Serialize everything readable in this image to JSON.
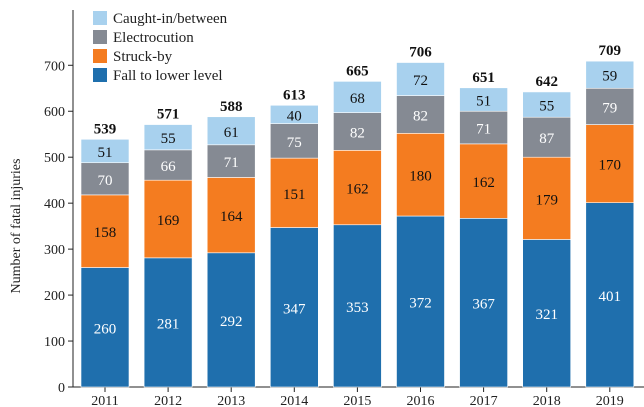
{
  "chart_data": {
    "type": "bar",
    "stacked": true,
    "title": "",
    "xlabel": "",
    "ylabel": "Number of fatal injuries",
    "ylim": [
      0,
      750
    ],
    "yticks": [
      0,
      100,
      200,
      300,
      400,
      500,
      600,
      700
    ],
    "grid": false,
    "legend_position": "top-left",
    "categories": [
      "2011",
      "2012",
      "2013",
      "2014",
      "2015",
      "2016",
      "2017",
      "2018",
      "2019"
    ],
    "series": [
      {
        "name": "Fall to lower level",
        "color": "#1f6fad",
        "values": [
          260,
          281,
          292,
          347,
          353,
          372,
          367,
          321,
          401
        ]
      },
      {
        "name": "Struck-by",
        "color": "#f47c20",
        "values": [
          158,
          169,
          164,
          151,
          162,
          180,
          162,
          179,
          170
        ]
      },
      {
        "name": "Electrocution",
        "color": "#858a93",
        "values": [
          70,
          66,
          71,
          75,
          82,
          82,
          71,
          87,
          79
        ]
      },
      {
        "name": "Caught-in/between",
        "color": "#a8d1ee",
        "values": [
          51,
          55,
          61,
          40,
          68,
          72,
          51,
          55,
          59
        ]
      }
    ],
    "totals": [
      539,
      571,
      588,
      613,
      665,
      706,
      651,
      642,
      709
    ],
    "legend_order": [
      "Caught-in/between",
      "Electrocution",
      "Struck-by",
      "Fall to lower level"
    ]
  }
}
